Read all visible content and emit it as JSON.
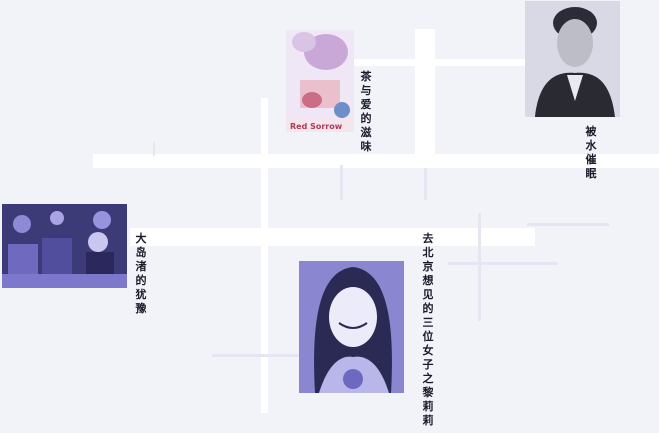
{
  "colors": {
    "background": "#f2f2f9",
    "road": "#ffffff",
    "photo_tint": "#8a86d0",
    "photo_dark": "#2b2a55",
    "label": "#1a1a2a"
  },
  "map": {
    "nodes": [
      {
        "id": "tea-and-love",
        "label": "茶与爱的滋味",
        "photo_caption": "Red Sorrow"
      },
      {
        "id": "hypnosis",
        "label": "被水催眠"
      },
      {
        "id": "oshima-hesitation",
        "label": "大岛渚的犹豫"
      },
      {
        "id": "beijing-three-women",
        "label": "去北京想见的三位女子之黎莉莉"
      }
    ]
  }
}
